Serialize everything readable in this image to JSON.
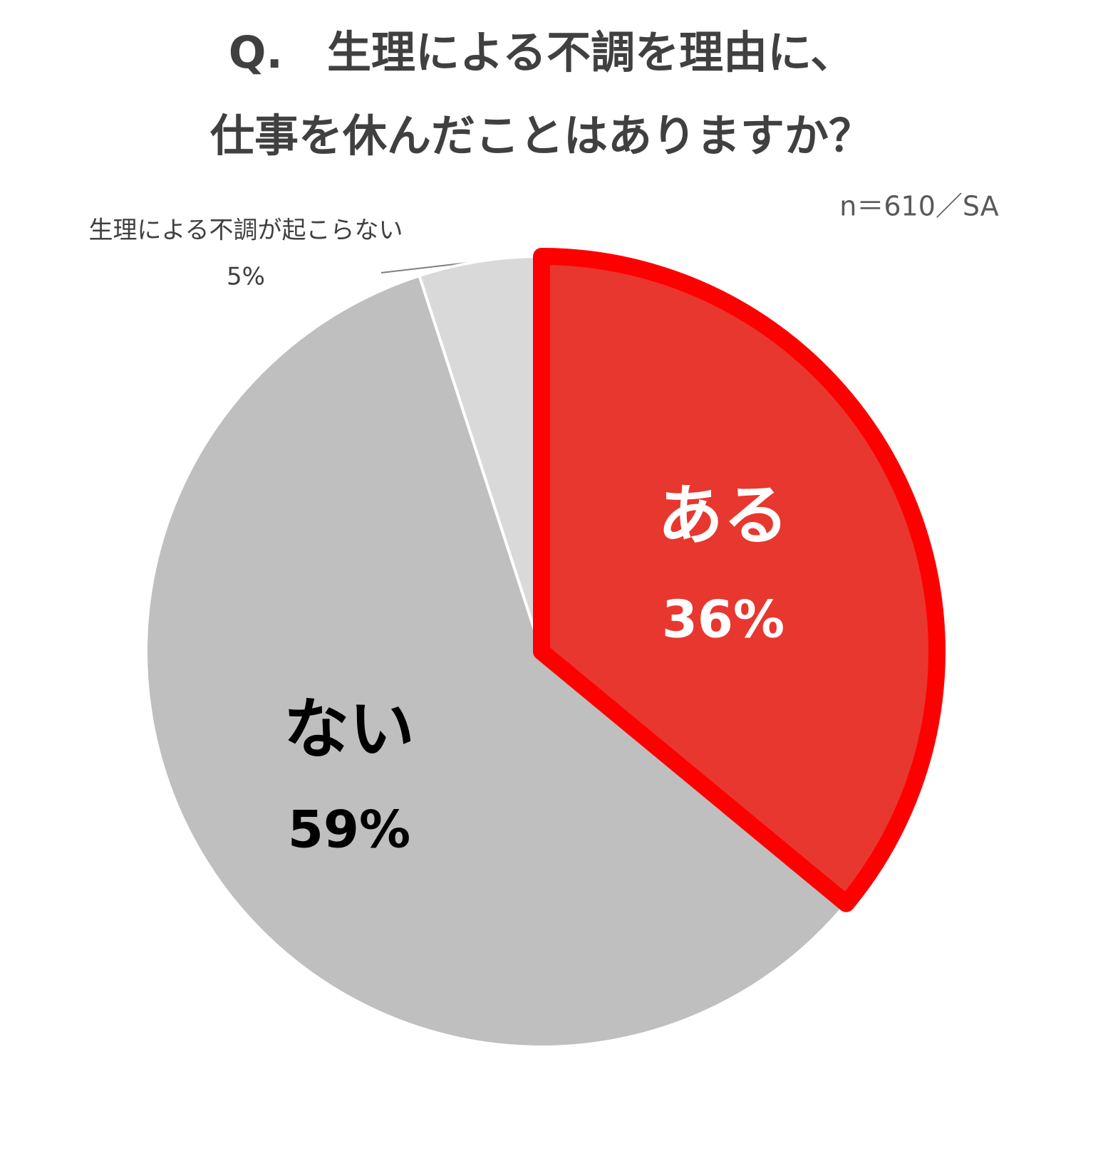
{
  "chart_data": {
    "type": "pie",
    "title": [
      "Q.　生理による不調を理由に、",
      "仕事を休んだことはありますか？"
    ],
    "subtitle": "n＝610／SA",
    "categories": [
      "ある",
      "ない",
      "生理による不調が起こらない"
    ],
    "values": [
      36,
      59,
      5
    ],
    "value_labels": [
      "36%",
      "59%",
      "5%"
    ],
    "colors": [
      "#e8372f",
      "#bfbfbf",
      "#d9d9d9"
    ],
    "edge_colors": [
      "#ff0000",
      "#ffffff",
      "#ffffff"
    ]
  }
}
